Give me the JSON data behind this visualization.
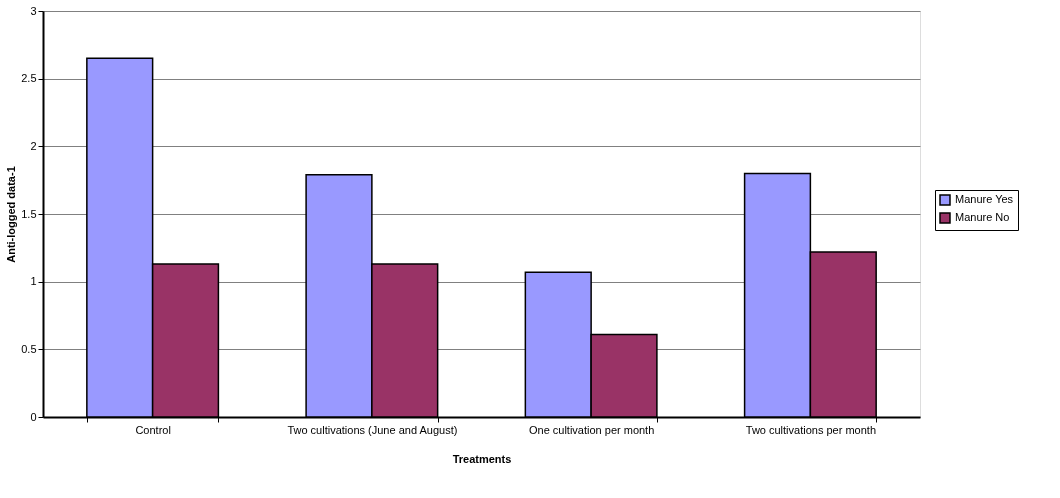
{
  "chart_data": {
    "type": "bar",
    "xlabel": "Treatments",
    "ylabel": "Anti-logged data-1",
    "categories": [
      "Control",
      "Two cultivations (June and August)",
      "One cultivation per month",
      "Two cultivations per month"
    ],
    "series": [
      {
        "name": "Manure Yes",
        "color": "#9999ff",
        "values": [
          2.65,
          1.79,
          1.07,
          1.8
        ]
      },
      {
        "name": "Manure No",
        "color": "#993366",
        "values": [
          1.13,
          1.13,
          0.61,
          1.22
        ]
      }
    ],
    "ylim": [
      0,
      3
    ],
    "yticks": [
      0,
      0.5,
      1,
      1.5,
      2,
      2.5,
      3
    ],
    "grid": "y",
    "legend": "right"
  }
}
